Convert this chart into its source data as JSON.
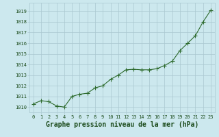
{
  "x": [
    0,
    1,
    2,
    3,
    4,
    5,
    6,
    7,
    8,
    9,
    10,
    11,
    12,
    13,
    14,
    15,
    16,
    17,
    18,
    19,
    20,
    21,
    22,
    23
  ],
  "y": [
    1010.3,
    1010.6,
    1010.5,
    1010.1,
    1010.0,
    1011.0,
    1011.2,
    1011.3,
    1011.8,
    1012.0,
    1012.6,
    1013.0,
    1013.5,
    1013.55,
    1013.5,
    1013.5,
    1013.6,
    1013.9,
    1014.3,
    1015.3,
    1016.0,
    1016.7,
    1018.0,
    1019.1
  ],
  "line_color": "#2d6a2d",
  "marker": "+",
  "marker_size": 4,
  "bg_color": "#cce8ee",
  "grid_color": "#aac8d0",
  "label_color": "#1a4a1a",
  "ylim_min": 1009.5,
  "ylim_max": 1019.8,
  "xlim_min": -0.5,
  "xlim_max": 23.5,
  "yticks": [
    1010,
    1011,
    1012,
    1013,
    1014,
    1015,
    1016,
    1017,
    1018,
    1019
  ],
  "xticks": [
    0,
    1,
    2,
    3,
    4,
    5,
    6,
    7,
    8,
    9,
    10,
    11,
    12,
    13,
    14,
    15,
    16,
    17,
    18,
    19,
    20,
    21,
    22,
    23
  ],
  "tick_fontsize": 5.0,
  "xlabel": "Graphe pression niveau de la mer (hPa)",
  "xlabel_fontsize": 7.0
}
